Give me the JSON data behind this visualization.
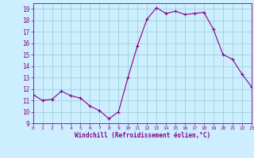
{
  "x": [
    0,
    1,
    2,
    3,
    4,
    5,
    6,
    7,
    8,
    9,
    10,
    11,
    12,
    13,
    14,
    15,
    16,
    17,
    18,
    19,
    20,
    21,
    22,
    23
  ],
  "y": [
    11.5,
    11.0,
    11.1,
    11.8,
    11.4,
    11.2,
    10.5,
    10.1,
    9.4,
    10.0,
    13.0,
    15.8,
    18.1,
    19.1,
    18.6,
    18.8,
    18.5,
    18.6,
    18.7,
    17.2,
    15.0,
    14.6,
    13.3,
    12.2
  ],
  "xlim": [
    0,
    23
  ],
  "ylim": [
    9,
    19.5
  ],
  "yticks": [
    9,
    10,
    11,
    12,
    13,
    14,
    15,
    16,
    17,
    18,
    19
  ],
  "xticks": [
    0,
    1,
    2,
    3,
    4,
    5,
    6,
    7,
    8,
    9,
    10,
    11,
    12,
    13,
    14,
    15,
    16,
    17,
    18,
    19,
    20,
    21,
    22,
    23
  ],
  "xlabel": "Windchill (Refroidissement éolien,°C)",
  "line_color": "#880088",
  "marker": "+",
  "marker_size": 3,
  "bg_color": "#cceeff",
  "grid_color": "#99cccc",
  "title": ""
}
